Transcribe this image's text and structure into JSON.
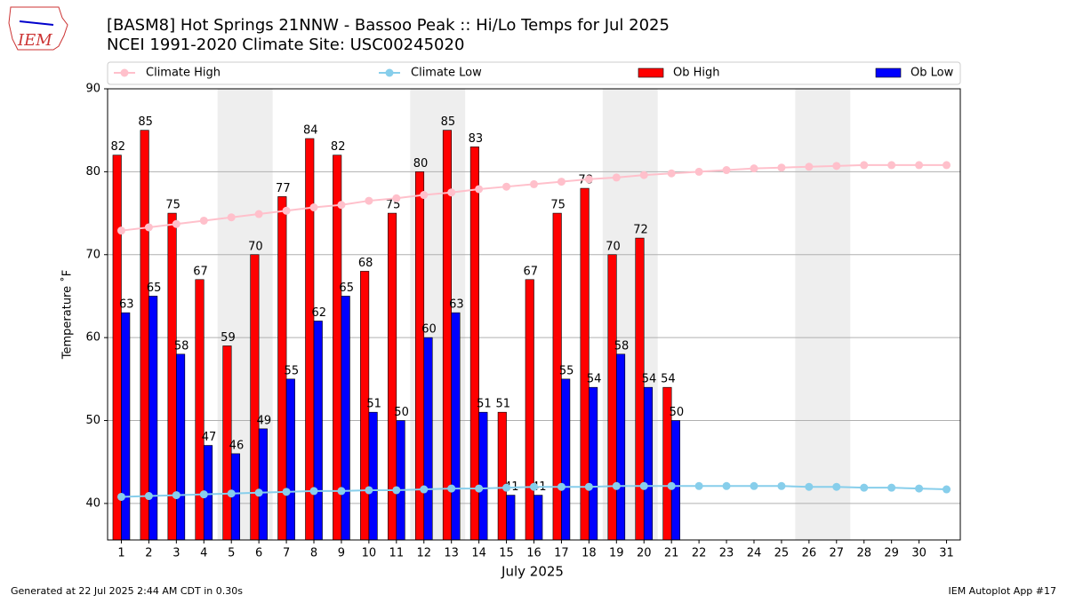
{
  "chart_data": {
    "type": "bar",
    "title": "[BASM8] Hot Springs 21NNW - Bassoo Peak :: Hi/Lo Temps for Jul 2025",
    "subtitle": "NCEI 1991-2020 Climate Site: USC00245020",
    "logo_text": "IEM",
    "x_label": "July 2025",
    "y_label": "Temperature ˚F",
    "footer_left": "Generated at 22 Jul 2025 2:44 AM CDT in 0.30s",
    "footer_right": "IEM Autoplot App #17",
    "categories": [
      "1",
      "2",
      "3",
      "4",
      "5",
      "6",
      "7",
      "8",
      "9",
      "10",
      "11",
      "12",
      "13",
      "14",
      "15",
      "16",
      "17",
      "18",
      "19",
      "20",
      "21",
      "22",
      "23",
      "24",
      "25",
      "26",
      "27",
      "28",
      "29",
      "30",
      "31"
    ],
    "series": [
      {
        "name": "Climate High",
        "kind": "line",
        "color": "#ffc0cb",
        "values": [
          72.9,
          73.3,
          73.7,
          74.1,
          74.5,
          74.9,
          75.3,
          75.7,
          76.0,
          76.5,
          76.8,
          77.2,
          77.5,
          77.9,
          78.2,
          78.5,
          78.8,
          79.1,
          79.3,
          79.6,
          79.8,
          80.0,
          80.2,
          80.4,
          80.5,
          80.6,
          80.7,
          80.8,
          80.8,
          80.8,
          80.8
        ]
      },
      {
        "name": "Climate Low",
        "kind": "line",
        "color": "#87ceeb",
        "values": [
          40.8,
          40.9,
          41.0,
          41.1,
          41.2,
          41.3,
          41.4,
          41.5,
          41.5,
          41.6,
          41.6,
          41.7,
          41.8,
          41.8,
          41.9,
          42.0,
          42.0,
          42.0,
          42.1,
          42.1,
          42.1,
          42.1,
          42.1,
          42.1,
          42.1,
          42.0,
          42.0,
          41.9,
          41.9,
          41.8,
          41.7
        ]
      },
      {
        "name": "Ob High",
        "kind": "bar",
        "color": "#ff0000",
        "values": [
          82,
          85,
          75,
          67,
          59,
          70,
          77,
          84,
          82,
          68,
          75,
          80,
          85,
          83,
          51,
          67,
          75,
          78,
          70,
          72,
          54,
          null,
          null,
          null,
          null,
          null,
          null,
          null,
          null,
          null,
          null
        ]
      },
      {
        "name": "Ob Low",
        "kind": "bar",
        "color": "#0000ff",
        "values": [
          63,
          65,
          58,
          47,
          46,
          49,
          55,
          62,
          65,
          51,
          50,
          60,
          63,
          51,
          41,
          41,
          55,
          54,
          58,
          54,
          50,
          null,
          null,
          null,
          null,
          null,
          null,
          null,
          null,
          null,
          null
        ]
      }
    ],
    "ylim": [
      35.6,
      90
    ],
    "yticks": [
      40,
      50,
      60,
      70,
      80,
      90
    ],
    "grid": true
  }
}
